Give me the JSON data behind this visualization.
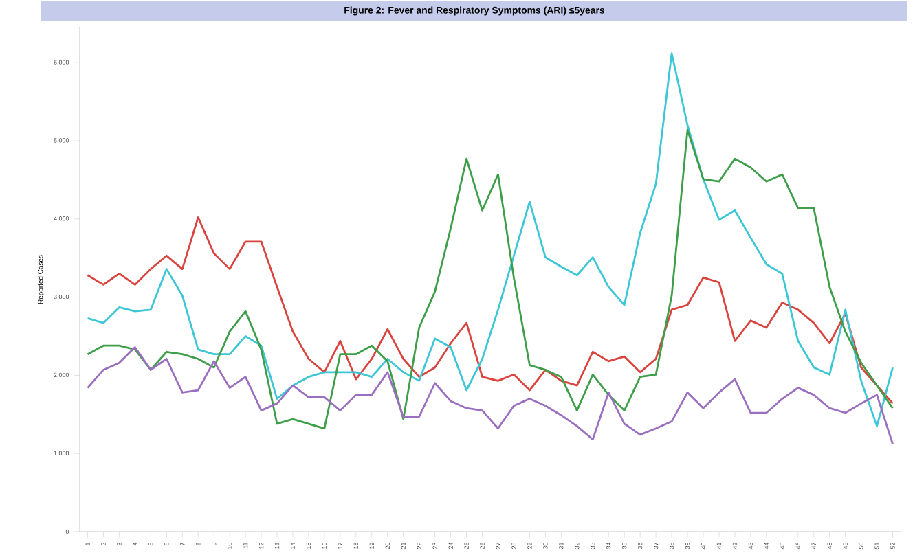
{
  "chart_data": {
    "type": "line",
    "title": "Figure 2: Fever and Respiratory Symptoms (ARI) ≤5years",
    "ylabel": "Reported Cases",
    "categories": [
      "1",
      "2",
      "3",
      "4",
      "5",
      "6",
      "7",
      "8",
      "9",
      "10",
      "11",
      "12",
      "13",
      "14",
      "15",
      "16",
      "17",
      "18",
      "19",
      "20",
      "21",
      "22",
      "23",
      "24",
      "25",
      "26",
      "27",
      "28",
      "29",
      "30",
      "31",
      "32",
      "33",
      "34",
      "35",
      "36",
      "37",
      "38",
      "39",
      "40",
      "41",
      "42",
      "43",
      "44",
      "45",
      "46",
      "47",
      "48",
      "49",
      "50",
      "51",
      "52"
    ],
    "ylim": [
      0,
      6450
    ],
    "yticks": [
      {
        "value": 0,
        "label": "0"
      },
      {
        "value": 1000,
        "label": "1,000"
      },
      {
        "value": 2000,
        "label": "2,000"
      },
      {
        "value": 3000,
        "label": "3,000"
      },
      {
        "value": 4000,
        "label": "4,000"
      },
      {
        "value": 5000,
        "label": "5,000"
      },
      {
        "value": 6000,
        "label": "6,000"
      }
    ],
    "series": [
      {
        "color": "#d9453e",
        "values": [
          3280,
          3160,
          3300,
          3160,
          3360,
          3530,
          3360,
          4020,
          3560,
          3360,
          3710,
          3710,
          3130,
          2560,
          2210,
          2040,
          2440,
          1950,
          2210,
          2590,
          2210,
          1980,
          2100,
          2410,
          2670,
          1980,
          1930,
          2010,
          1810,
          2070,
          1930,
          1870,
          2300,
          2180,
          2240,
          2040,
          2210,
          2840,
          2900,
          3250,
          3190,
          2440,
          2700,
          2610,
          2930,
          2840,
          2670,
          2410,
          2790,
          2100,
          1870,
          1640
        ]
      },
      {
        "color": "#3cc6d6",
        "values": [
          2730,
          2670,
          2870,
          2820,
          2840,
          3360,
          3020,
          2330,
          2270,
          2270,
          2500,
          2380,
          1700,
          1870,
          1980,
          2040,
          2040,
          2040,
          1980,
          2210,
          2040,
          1930,
          2470,
          2360,
          1810,
          2210,
          2840,
          3530,
          4220,
          3510,
          3390,
          3280,
          3510,
          3130,
          2900,
          3820,
          4450,
          6120,
          5200,
          4510,
          3990,
          4110,
          3760,
          3420,
          3300,
          2440,
          2100,
          2010,
          2840,
          1930,
          1350,
          2100
        ]
      },
      {
        "color": "#3e9e4a",
        "values": [
          2270,
          2380,
          2380,
          2330,
          2070,
          2300,
          2270,
          2210,
          2100,
          2560,
          2820,
          2330,
          1380,
          1440,
          1380,
          1320,
          2270,
          2270,
          2380,
          2180,
          1440,
          2610,
          3070,
          3880,
          4770,
          4110,
          4570,
          3250,
          2130,
          2070,
          1980,
          1550,
          2010,
          1750,
          1550,
          1980,
          2010,
          3020,
          5140,
          4510,
          4480,
          4770,
          4660,
          4480,
          4570,
          4140,
          4140,
          3130,
          2560,
          2160,
          1870,
          1580
        ]
      },
      {
        "color": "#9b6fbf",
        "values": [
          1840,
          2070,
          2160,
          2360,
          2070,
          2210,
          1780,
          1810,
          2180,
          1840,
          1980,
          1550,
          1640,
          1870,
          1720,
          1720,
          1550,
          1750,
          1750,
          2040,
          1470,
          1470,
          1900,
          1670,
          1580,
          1550,
          1320,
          1610,
          1700,
          1610,
          1490,
          1350,
          1180,
          1780,
          1380,
          1240,
          1320,
          1410,
          1780,
          1580,
          1780,
          1950,
          1520,
          1520,
          1700,
          1840,
          1750,
          1580,
          1520,
          1640,
          1750,
          1120
        ]
      }
    ]
  }
}
